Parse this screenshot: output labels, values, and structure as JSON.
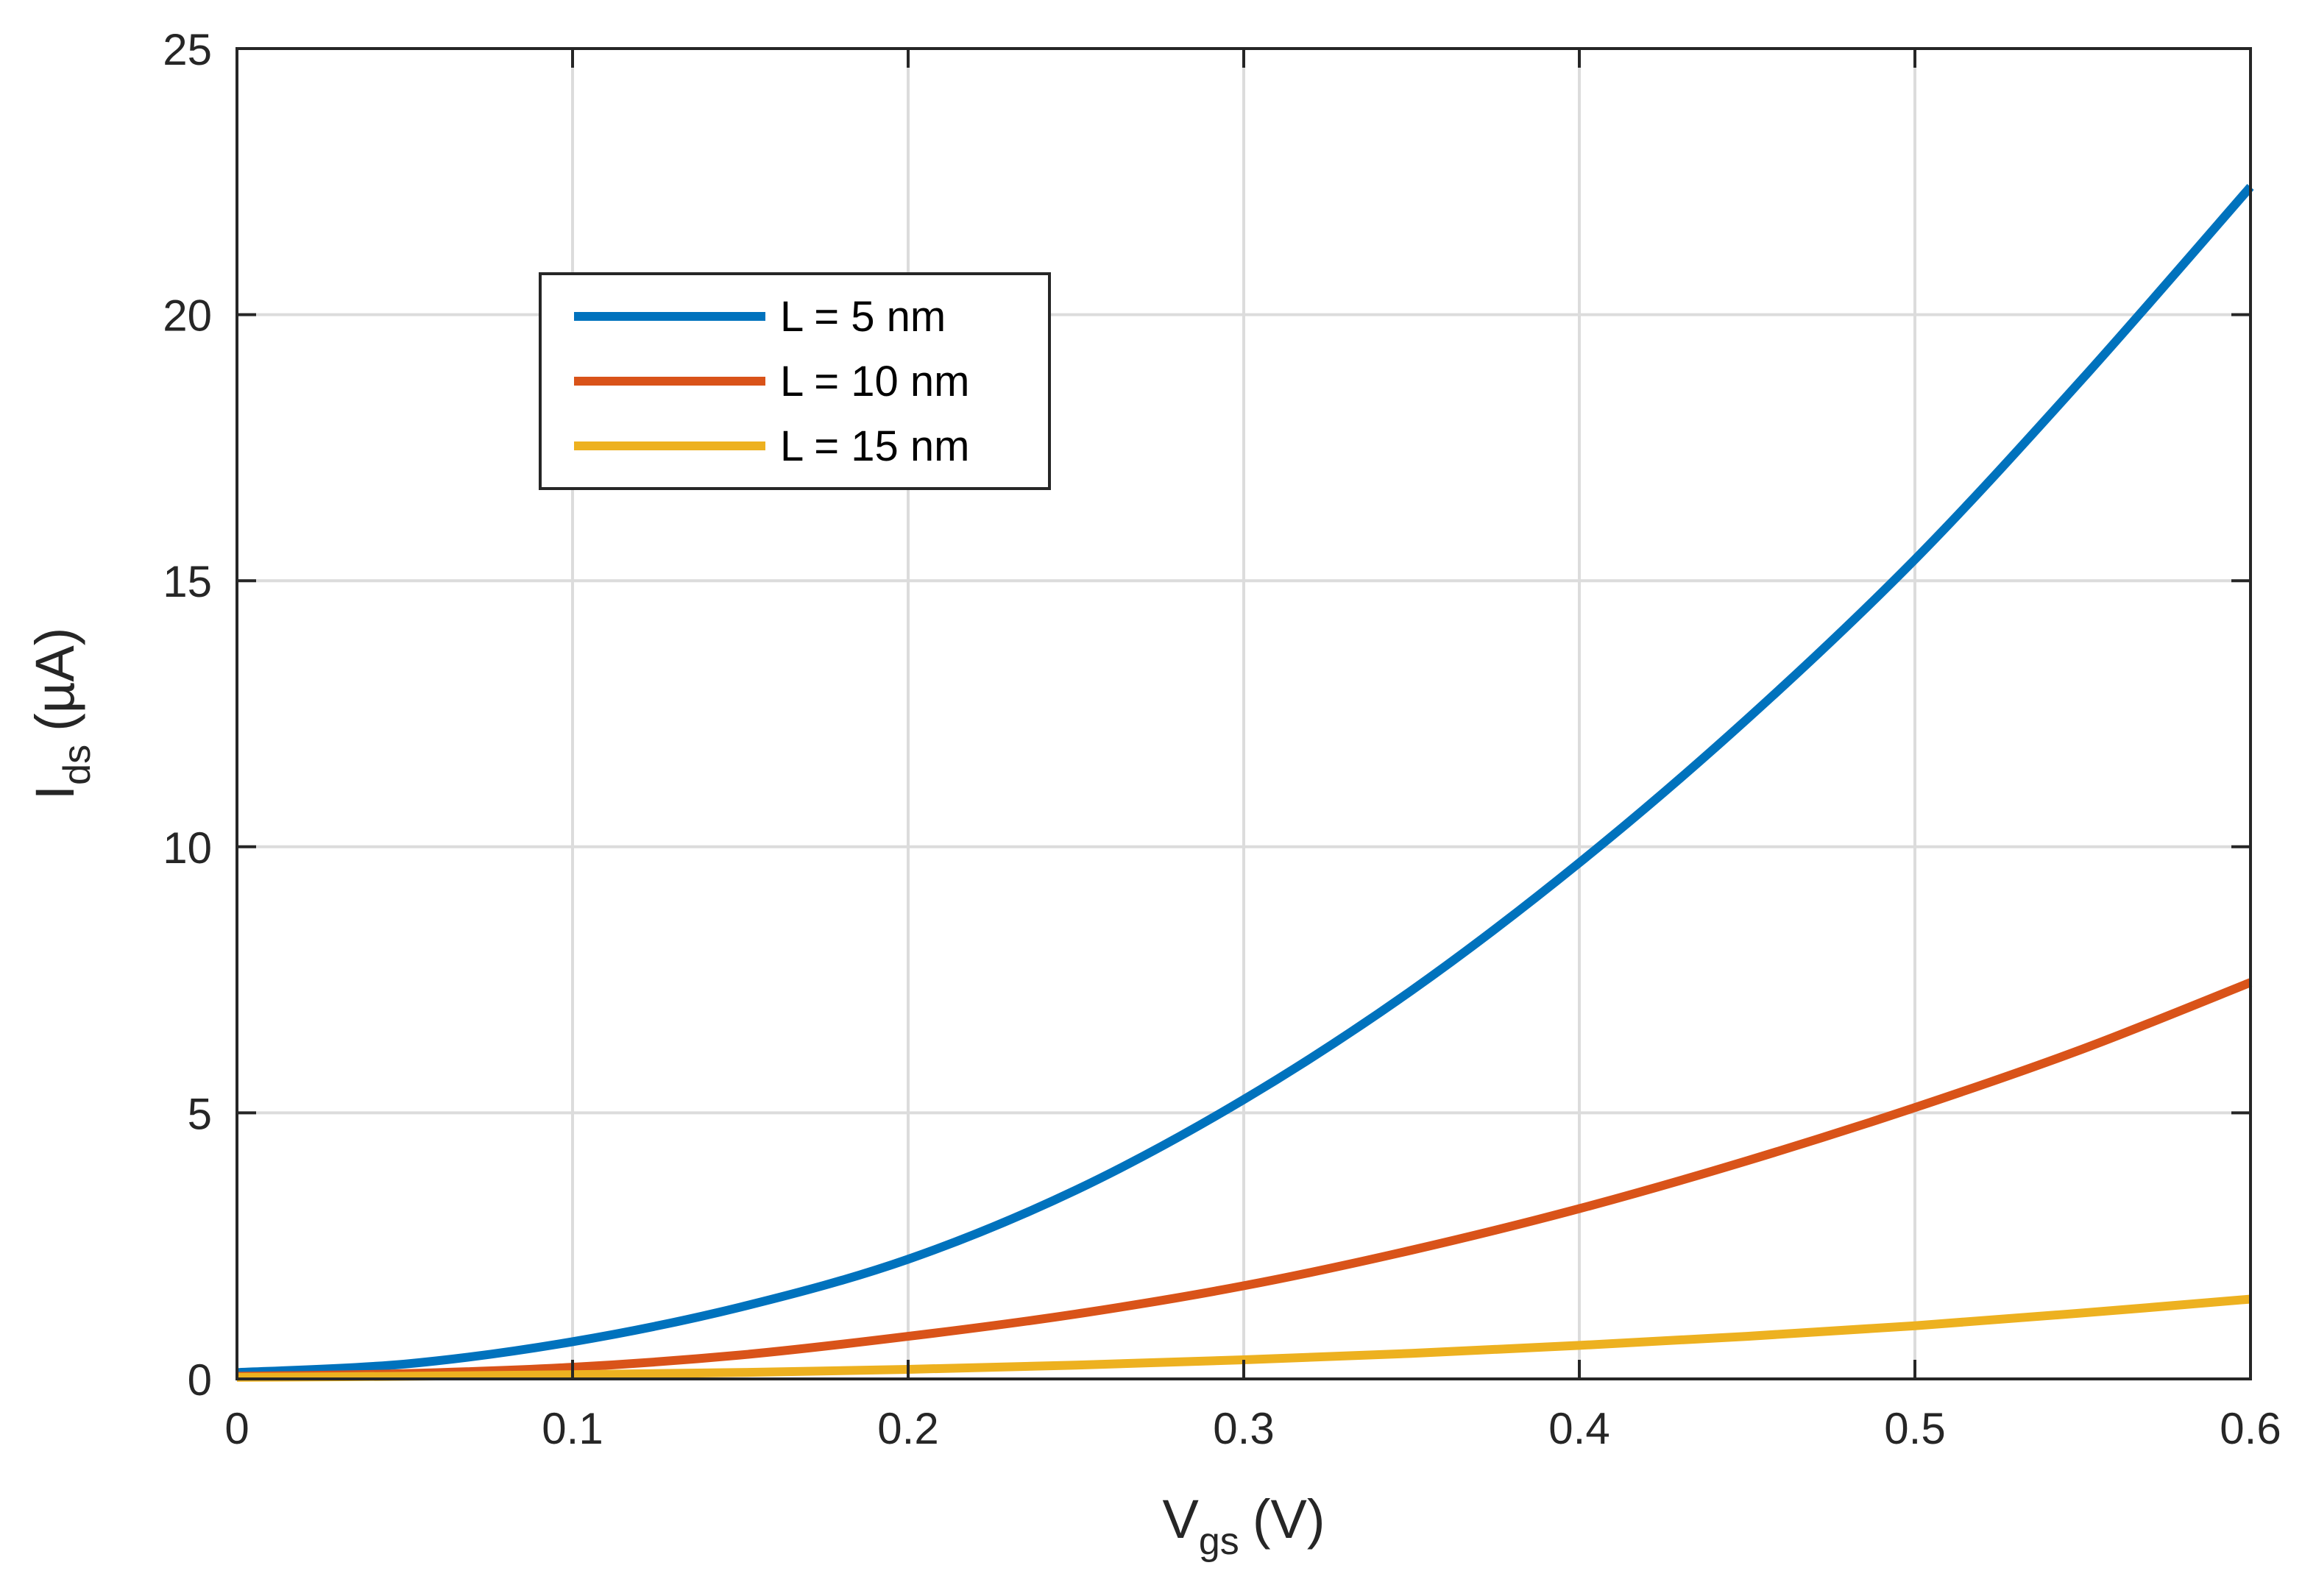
{
  "chart_data": {
    "type": "line",
    "title": "",
    "xlabel": {
      "main": "V",
      "sub": "gs",
      "unit": "(V)"
    },
    "ylabel": {
      "main": "I",
      "sub": "ds",
      "unit": "(µA)"
    },
    "xlim": [
      0,
      0.6
    ],
    "ylim": [
      0,
      25
    ],
    "xticks": [
      0,
      0.1,
      0.2,
      0.3,
      0.4,
      0.5,
      0.6
    ],
    "xtick_labels": [
      "0",
      "0.1",
      "0.2",
      "0.3",
      "0.4",
      "0.5",
      "0.6"
    ],
    "yticks": [
      0,
      5,
      10,
      15,
      20,
      25
    ],
    "ytick_labels": [
      "0",
      "5",
      "10",
      "15",
      "20",
      "25"
    ],
    "grid": true,
    "legend_position": "upper-left",
    "x": [
      0,
      0.05,
      0.1,
      0.15,
      0.2,
      0.25,
      0.3,
      0.35,
      0.4,
      0.45,
      0.5,
      0.55,
      0.6
    ],
    "series": [
      {
        "name": "L = 5 nm",
        "color": "#0072BD",
        "values": [
          0.12,
          0.28,
          0.7,
          1.35,
          2.25,
          3.55,
          5.25,
          7.3,
          9.7,
          12.4,
          15.4,
          18.8,
          22.4
        ]
      },
      {
        "name": "L = 10 nm",
        "color": "#D95319",
        "values": [
          0.05,
          0.1,
          0.22,
          0.45,
          0.8,
          1.22,
          1.75,
          2.42,
          3.2,
          4.1,
          5.1,
          6.2,
          7.45
        ]
      },
      {
        "name": "L = 15 nm",
        "color": "#EDB120",
        "values": [
          0.03,
          0.05,
          0.08,
          0.12,
          0.18,
          0.26,
          0.36,
          0.48,
          0.63,
          0.8,
          1.0,
          1.24,
          1.5
        ]
      }
    ]
  }
}
